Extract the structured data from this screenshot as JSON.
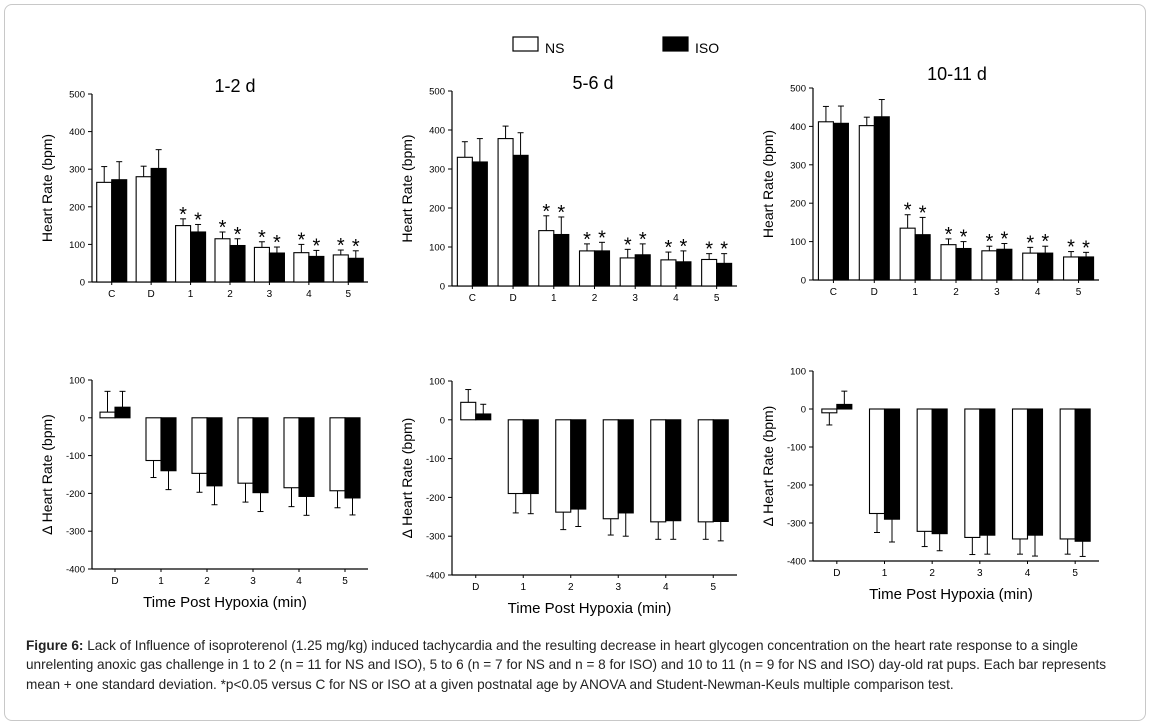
{
  "legend": [
    {
      "label": "NS",
      "fill": "#ffffff"
    },
    {
      "label": "ISO",
      "fill": "#000000"
    }
  ],
  "caption": {
    "label": "Figure 6:",
    "text": "Lack of Influence of isoproterenol (1.25 mg/kg) induced tachycardia and the resulting decrease in heart glycogen concentration on the heart rate response to a single unrelenting anoxic gas challenge in 1 to 2 (n = 11 for NS and ISO), 5 to 6 (n = 7 for NS and n = 8 for ISO) and 10 to 11 (n = 9 for NS and ISO) day-old rat pups.  Each bar represents mean + one standard deviation.  *p<0.05 versus C for NS or ISO at a given postnatal age by ANOVA and Student-Newman-Keuls multiple comparison test."
  },
  "chart_data": [
    {
      "type": "bar",
      "title": "1-2 d",
      "ylabel": "Heart Rate (bpm)",
      "xlabel": "",
      "categories": [
        "C",
        "D",
        "1",
        "2",
        "3",
        "4",
        "5"
      ],
      "ylim": [
        0,
        500
      ],
      "yticks": [
        0,
        100,
        200,
        300,
        400,
        500
      ],
      "series": [
        {
          "name": "NS",
          "values": [
            265,
            280,
            150,
            115,
            92,
            78,
            72
          ],
          "sd": [
            42,
            28,
            18,
            18,
            15,
            22,
            13
          ],
          "stars": [
            false,
            false,
            true,
            true,
            true,
            true,
            true
          ]
        },
        {
          "name": "ISO",
          "values": [
            272,
            302,
            133,
            97,
            77,
            68,
            63
          ],
          "sd": [
            48,
            50,
            20,
            18,
            16,
            16,
            20
          ],
          "stars": [
            false,
            false,
            true,
            true,
            true,
            true,
            true
          ]
        }
      ]
    },
    {
      "type": "bar",
      "title": "5-6 d",
      "ylabel": "Heart Rate (bpm)",
      "xlabel": "",
      "categories": [
        "C",
        "D",
        "1",
        "2",
        "3",
        "4",
        "5"
      ],
      "ylim": [
        0,
        500
      ],
      "yticks": [
        0,
        100,
        200,
        300,
        400,
        500
      ],
      "series": [
        {
          "name": "NS",
          "values": [
            330,
            378,
            142,
            90,
            72,
            67,
            68
          ],
          "sd": [
            40,
            32,
            38,
            18,
            22,
            20,
            15
          ],
          "stars": [
            false,
            false,
            true,
            true,
            true,
            true,
            true
          ]
        },
        {
          "name": "ISO",
          "values": [
            318,
            335,
            132,
            90,
            80,
            62,
            58
          ],
          "sd": [
            60,
            58,
            45,
            22,
            28,
            28,
            25
          ],
          "stars": [
            false,
            false,
            true,
            true,
            true,
            true,
            true
          ]
        }
      ]
    },
    {
      "type": "bar",
      "title": "10-11 d",
      "ylabel": "Heart Rate (bpm)",
      "xlabel": "",
      "categories": [
        "C",
        "D",
        "1",
        "2",
        "3",
        "4",
        "5"
      ],
      "ylim": [
        0,
        500
      ],
      "yticks": [
        0,
        100,
        200,
        300,
        400,
        500
      ],
      "series": [
        {
          "name": "NS",
          "values": [
            412,
            402,
            135,
            92,
            76,
            70,
            60
          ],
          "sd": [
            40,
            22,
            35,
            15,
            12,
            15,
            14
          ],
          "stars": [
            false,
            false,
            true,
            true,
            true,
            true,
            true
          ]
        },
        {
          "name": "ISO",
          "values": [
            408,
            425,
            118,
            82,
            80,
            70,
            60
          ],
          "sd": [
            45,
            45,
            45,
            18,
            15,
            18,
            12
          ],
          "stars": [
            false,
            false,
            true,
            true,
            true,
            true,
            true
          ]
        }
      ]
    },
    {
      "type": "bar",
      "title": "",
      "ylabel": "Δ Heart Rate (bpm)",
      "xlabel": "Time Post Hypoxia (min)",
      "categories": [
        "D",
        "1",
        "2",
        "3",
        "4",
        "5"
      ],
      "ylim": [
        -400,
        100
      ],
      "yticks": [
        -400,
        -300,
        -200,
        -100,
        0,
        100
      ],
      "series": [
        {
          "name": "NS",
          "values": [
            15,
            -113,
            -147,
            -173,
            -185,
            -193
          ],
          "sd": [
            55,
            45,
            50,
            50,
            50,
            45
          ]
        },
        {
          "name": "ISO",
          "values": [
            28,
            -140,
            -180,
            -198,
            -208,
            -212
          ],
          "sd": [
            42,
            50,
            50,
            50,
            50,
            45
          ]
        }
      ]
    },
    {
      "type": "bar",
      "title": "",
      "ylabel": "Δ Heart Rate (bpm)",
      "xlabel": "Time Post Hypoxia (min)",
      "categories": [
        "D",
        "1",
        "2",
        "3",
        "4",
        "5"
      ],
      "ylim": [
        -400,
        100
      ],
      "yticks": [
        -400,
        -300,
        -200,
        -100,
        0,
        100
      ],
      "series": [
        {
          "name": "NS",
          "values": [
            45,
            -190,
            -238,
            -255,
            -263,
            -263
          ],
          "sd": [
            33,
            50,
            45,
            42,
            45,
            45
          ]
        },
        {
          "name": "ISO",
          "values": [
            15,
            -190,
            -230,
            -240,
            -260,
            -262
          ],
          "sd": [
            25,
            52,
            45,
            60,
            48,
            50
          ]
        }
      ]
    },
    {
      "type": "bar",
      "title": "",
      "ylabel": "Δ Heart Rate (bpm)",
      "xlabel": "Time Post Hypoxia (min)",
      "categories": [
        "D",
        "1",
        "2",
        "3",
        "4",
        "5"
      ],
      "ylim": [
        -400,
        100
      ],
      "yticks": [
        -400,
        -300,
        -200,
        -100,
        0,
        100
      ],
      "series": [
        {
          "name": "NS",
          "values": [
            -10,
            -275,
            -322,
            -338,
            -342,
            -342
          ],
          "sd": [
            32,
            50,
            40,
            45,
            40,
            40
          ]
        },
        {
          "name": "ISO",
          "values": [
            12,
            -290,
            -328,
            -332,
            -332,
            -348
          ],
          "sd": [
            35,
            60,
            45,
            50,
            55,
            40
          ]
        }
      ]
    }
  ]
}
